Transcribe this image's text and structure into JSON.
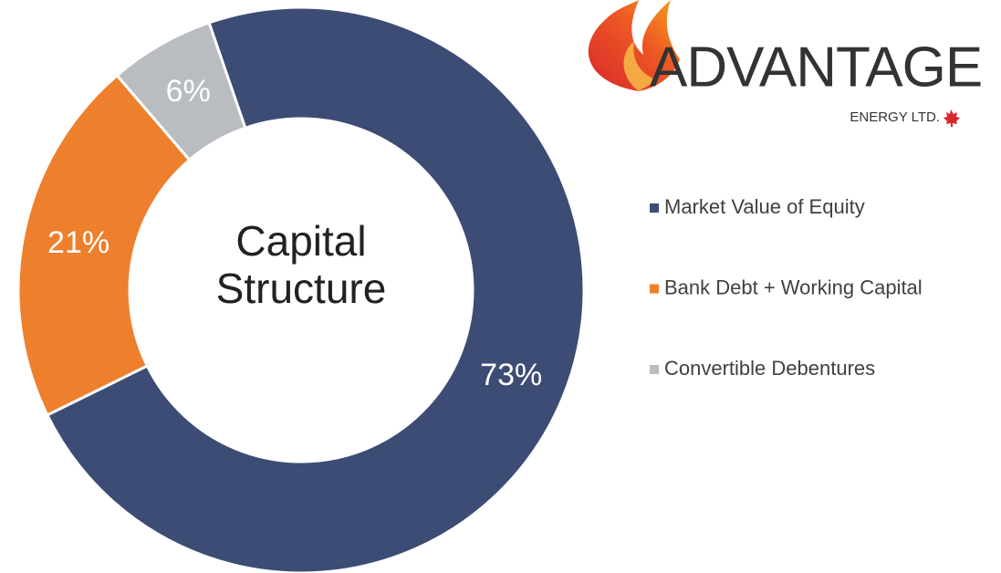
{
  "chart_data": {
    "type": "donut",
    "title": "Capital Structure",
    "categories": [
      "Market Value of Equity",
      "Bank Debt + Working Capital",
      "Convertible Debentures"
    ],
    "values": [
      73,
      21,
      6
    ],
    "value_labels": [
      "73%",
      "21%",
      "6%"
    ],
    "colors": [
      "#3c4c74",
      "#ee7f2d",
      "#b9bcc0"
    ],
    "legend": "right"
  },
  "logo": {
    "name": "ADVANTAGE",
    "subtitle": "ENERGY LTD."
  }
}
